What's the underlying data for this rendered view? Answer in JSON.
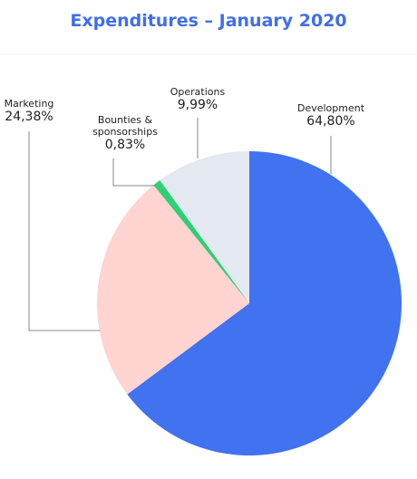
{
  "chart_data": {
    "type": "pie",
    "title": "Expenditures – January 2020",
    "categories": [
      "Development",
      "Marketing",
      "Bounties & sponsorships",
      "Operations"
    ],
    "values": [
      64.8,
      24.38,
      0.83,
      9.99
    ],
    "value_labels": [
      "64,80%",
      "24,38%",
      "0,83%",
      "9,99%"
    ],
    "colors": [
      "#4172f0",
      "#ffd4d1",
      "#2fcf74",
      "#e3e8f1"
    ]
  }
}
